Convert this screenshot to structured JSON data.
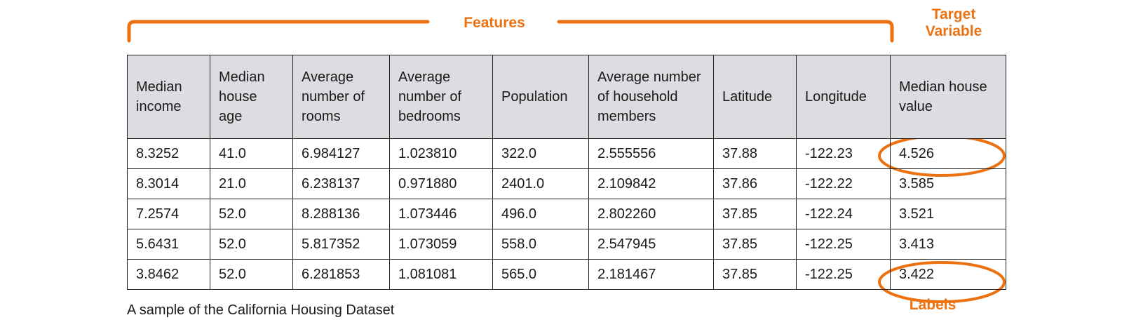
{
  "annotations": {
    "features_label": "Features",
    "target_label_line1": "Target",
    "target_label_line2": "Variable",
    "labels_label": "Labels",
    "accent_color": "#ec7211"
  },
  "table": {
    "columns": [
      "Median income",
      "Median house age",
      "Average number of rooms",
      "Average number of bedrooms",
      "Population",
      "Average number of household members",
      "Latitude",
      "Longitude",
      "Median house value"
    ],
    "rows": [
      [
        "8.3252",
        "41.0",
        "6.984127",
        "1.023810",
        "322.0",
        "2.555556",
        "37.88",
        "-122.23",
        "4.526"
      ],
      [
        "8.3014",
        "21.0",
        "6.238137",
        "0.971880",
        "2401.0",
        "2.109842",
        "37.86",
        "-122.22",
        "3.585"
      ],
      [
        "7.2574",
        "52.0",
        "8.288136",
        "1.073446",
        "496.0",
        "2.802260",
        "37.85",
        "-122.24",
        "3.521"
      ],
      [
        "5.6431",
        "52.0",
        "5.817352",
        "1.073059",
        "558.0",
        "2.547945",
        "37.85",
        "-122.25",
        "3.413"
      ],
      [
        "3.8462",
        "52.0",
        "6.281853",
        "1.081081",
        "565.0",
        "2.181467",
        "37.85",
        "-122.25",
        "3.422"
      ]
    ],
    "header_background": "#dcdde0"
  },
  "caption": "A sample of the California Housing Dataset"
}
